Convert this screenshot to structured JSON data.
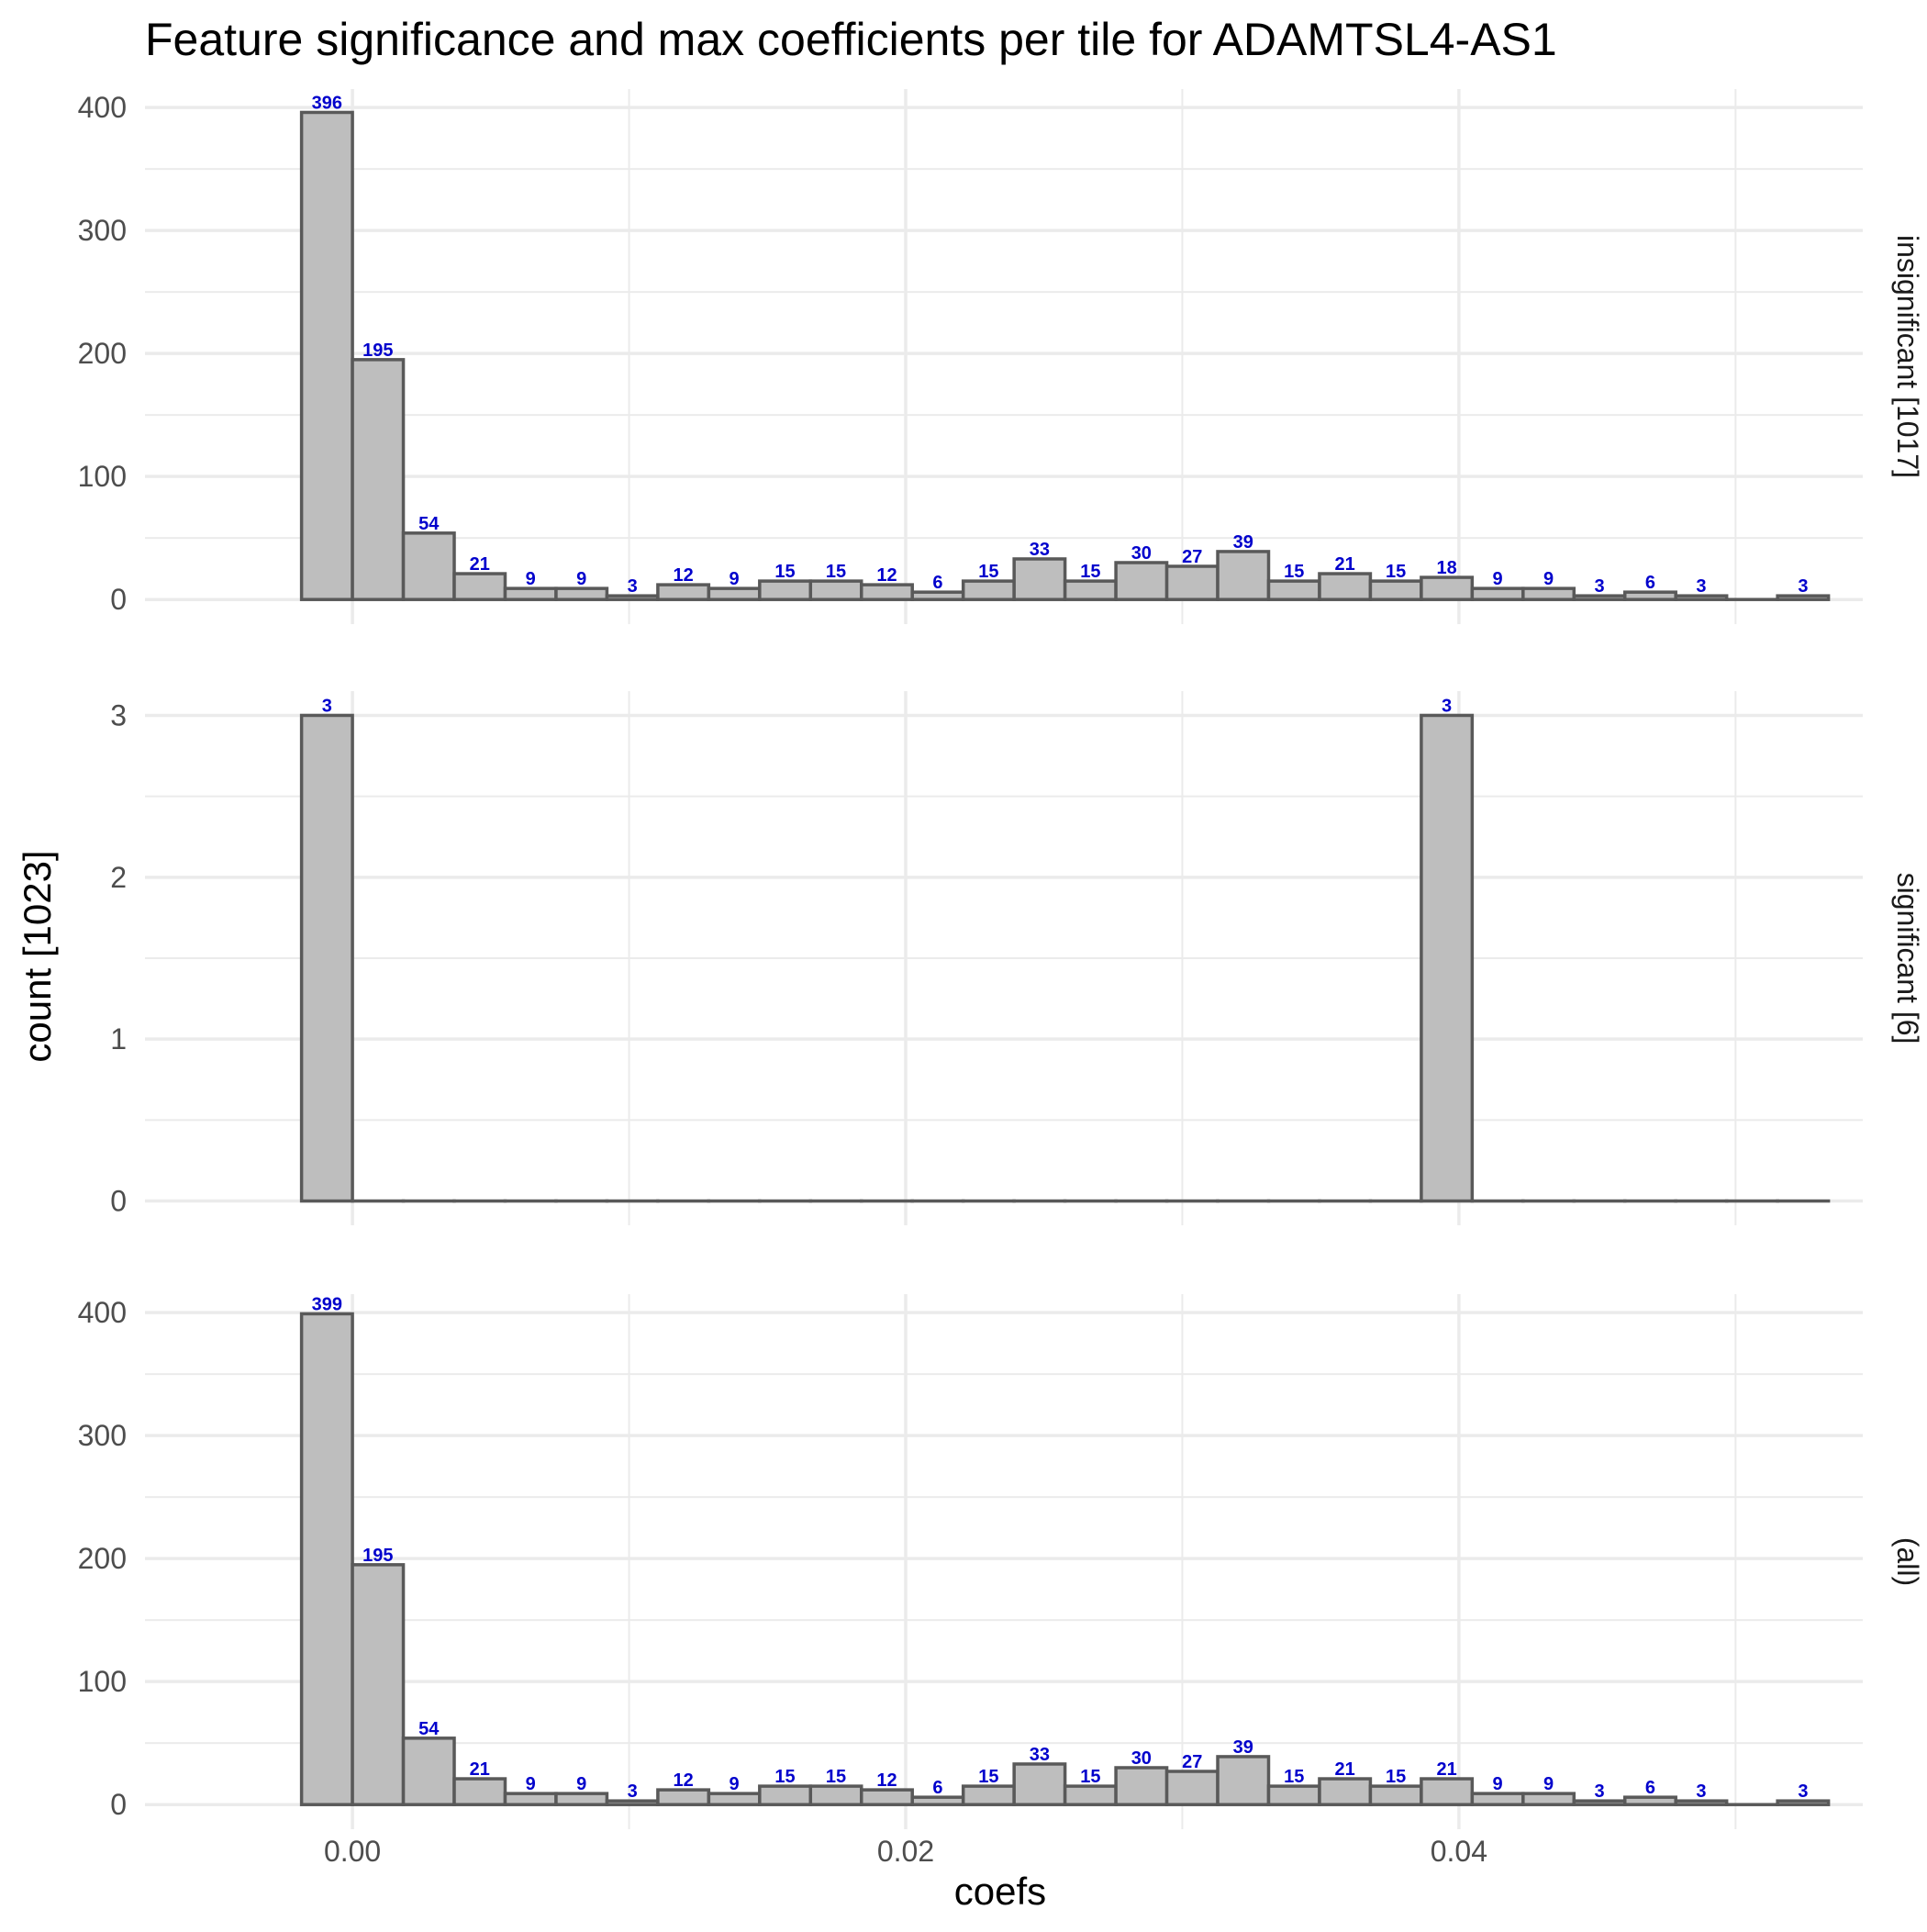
{
  "chart_data": {
    "type": "bar",
    "title": "Feature significance and max coefficients per tile for ADAMTSL4-AS1",
    "xlabel": "coefs",
    "ylabel": "count [1023]",
    "x_ticks": [
      0.0,
      0.02,
      0.04
    ],
    "x_tick_labels": [
      "0.00",
      "0.02",
      "0.04"
    ],
    "xlim": [
      -0.0075,
      0.0546
    ],
    "bin_width": 0.00184,
    "bin_start": -0.00184,
    "grid": true,
    "colors": {
      "bar_fill": "#bebebe",
      "bar_stroke": "#595959",
      "label": "#0000cc",
      "grid": "#ebebeb"
    },
    "panels": [
      {
        "strip": "insignificant [1017]",
        "ylim": [
          -20,
          415
        ],
        "y_ticks": [
          0,
          100,
          200,
          300,
          400
        ],
        "y_tick_labels": [
          "0",
          "100",
          "200",
          "300",
          "400"
        ],
        "values": [
          396,
          195,
          54,
          21,
          9,
          9,
          3,
          12,
          9,
          15,
          15,
          12,
          6,
          15,
          33,
          15,
          30,
          27,
          39,
          15,
          21,
          15,
          18,
          9,
          9,
          3,
          6,
          3,
          0,
          3
        ],
        "labels": [
          "396",
          "195",
          "54",
          "21",
          "9",
          "9",
          "3",
          "12",
          "9",
          "15",
          "15",
          "12",
          "6",
          "15",
          "33",
          "15",
          "30",
          "27",
          "39",
          "15",
          "21",
          "15",
          "18",
          "9",
          "9",
          "3",
          "6",
          "3",
          "",
          "3"
        ]
      },
      {
        "strip": "significant [6]",
        "ylim": [
          -0.15,
          3.15
        ],
        "y_ticks": [
          0,
          1,
          2,
          3
        ],
        "y_tick_labels": [
          "0",
          "1",
          "2",
          "3"
        ],
        "values": [
          3,
          0,
          0,
          0,
          0,
          0,
          0,
          0,
          0,
          0,
          0,
          0,
          0,
          0,
          0,
          0,
          0,
          0,
          0,
          0,
          0,
          0,
          3,
          0,
          0,
          0,
          0,
          0,
          0,
          0
        ],
        "labels": [
          "3",
          "",
          "",
          "",
          "",
          "",
          "",
          "",
          "",
          "",
          "",
          "",
          "",
          "",
          "",
          "",
          "",
          "",
          "",
          "",
          "",
          "",
          "3",
          "",
          "",
          "",
          "",
          "",
          "",
          ""
        ]
      },
      {
        "strip": "(all)",
        "ylim": [
          -20,
          415
        ],
        "y_ticks": [
          0,
          100,
          200,
          300,
          400
        ],
        "y_tick_labels": [
          "0",
          "100",
          "200",
          "300",
          "400"
        ],
        "values": [
          399,
          195,
          54,
          21,
          9,
          9,
          3,
          12,
          9,
          15,
          15,
          12,
          6,
          15,
          33,
          15,
          30,
          27,
          39,
          15,
          21,
          15,
          21,
          9,
          9,
          3,
          6,
          3,
          0,
          3
        ],
        "labels": [
          "399",
          "195",
          "54",
          "21",
          "9",
          "9",
          "3",
          "12",
          "9",
          "15",
          "15",
          "12",
          "6",
          "15",
          "33",
          "15",
          "30",
          "27",
          "39",
          "15",
          "21",
          "15",
          "21",
          "9",
          "9",
          "3",
          "6",
          "3",
          "",
          "3"
        ]
      }
    ]
  }
}
